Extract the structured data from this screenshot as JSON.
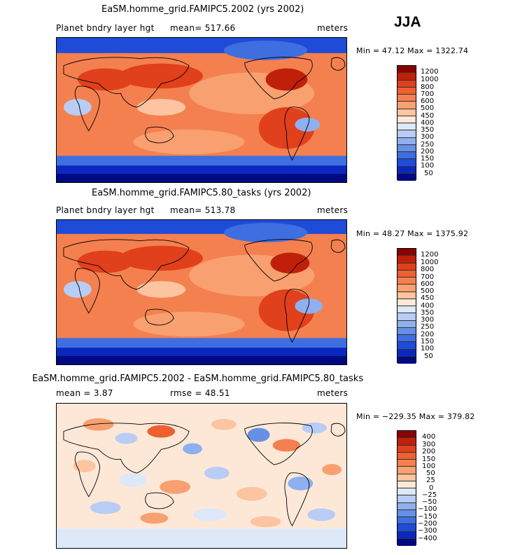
{
  "season": "JJA",
  "chart_data": [
    {
      "type": "heatmap",
      "title": "EaSM.homme_grid.FAMIPC5.2002 (yrs 2002)",
      "subtitle_left": "Planet bndry layer hgt",
      "mean_text": "mean= 517.66",
      "units": "meters",
      "minmax_text": "Min =   47.12  Max = 1322.74",
      "min": 47.12,
      "max": 1322.74,
      "mean": 517.66,
      "colorbar": {
        "labels": [
          "1200",
          "1000",
          "800",
          "700",
          "600",
          "500",
          "450",
          "400",
          "350",
          "300",
          "250",
          "200",
          "150",
          "100",
          "50"
        ],
        "colors": [
          "#8b0000",
          "#c0200a",
          "#e0401c",
          "#ee6030",
          "#f48050",
          "#f8a070",
          "#fcc4a0",
          "#fde8d8",
          "#dde8f8",
          "#b8ccf4",
          "#8eb0ee",
          "#6690e6",
          "#3e6ee0",
          "#1e4cd8",
          "#0a28c0",
          "#000a80"
        ]
      }
    },
    {
      "type": "heatmap",
      "title": "EaSM.homme_grid.FAMIPC5.80_tasks (yrs 2002)",
      "subtitle_left": "Planet bndry layer hgt",
      "mean_text": "mean= 513.78",
      "units": "meters",
      "minmax_text": "Min =   48.27  Max = 1375.92",
      "min": 48.27,
      "max": 1375.92,
      "mean": 513.78,
      "colorbar": {
        "labels": [
          "1200",
          "1000",
          "800",
          "700",
          "600",
          "500",
          "450",
          "400",
          "350",
          "300",
          "250",
          "200",
          "150",
          "100",
          "50"
        ],
        "colors": [
          "#8b0000",
          "#c0200a",
          "#e0401c",
          "#ee6030",
          "#f48050",
          "#f8a070",
          "#fcc4a0",
          "#fde8d8",
          "#dde8f8",
          "#b8ccf4",
          "#8eb0ee",
          "#6690e6",
          "#3e6ee0",
          "#1e4cd8",
          "#0a28c0",
          "#000a80"
        ]
      }
    },
    {
      "type": "heatmap",
      "title": "EaSM.homme_grid.FAMIPC5.2002 - EaSM.homme_grid.FAMIPC5.80_tasks",
      "subtitle_left": "mean =    3.87",
      "mean_text": "rmse =   48.51",
      "units": "meters",
      "minmax_text": "Min = −229.35  Max = 379.82",
      "min": -229.35,
      "max": 379.82,
      "mean": 3.87,
      "rmse": 48.51,
      "colorbar": {
        "labels": [
          "400",
          "300",
          "200",
          "150",
          "100",
          "50",
          "25",
          "0",
          "−25",
          "−50",
          "−100",
          "−150",
          "−200",
          "−300",
          "−400"
        ],
        "colors": [
          "#8b0000",
          "#c0200a",
          "#e0401c",
          "#ee6030",
          "#f48050",
          "#f8a070",
          "#fcc4a0",
          "#fde8d8",
          "#dde8f8",
          "#b8ccf4",
          "#8eb0ee",
          "#6690e6",
          "#3e6ee0",
          "#1e4cd8",
          "#0a28c0",
          "#000a80"
        ]
      }
    }
  ]
}
